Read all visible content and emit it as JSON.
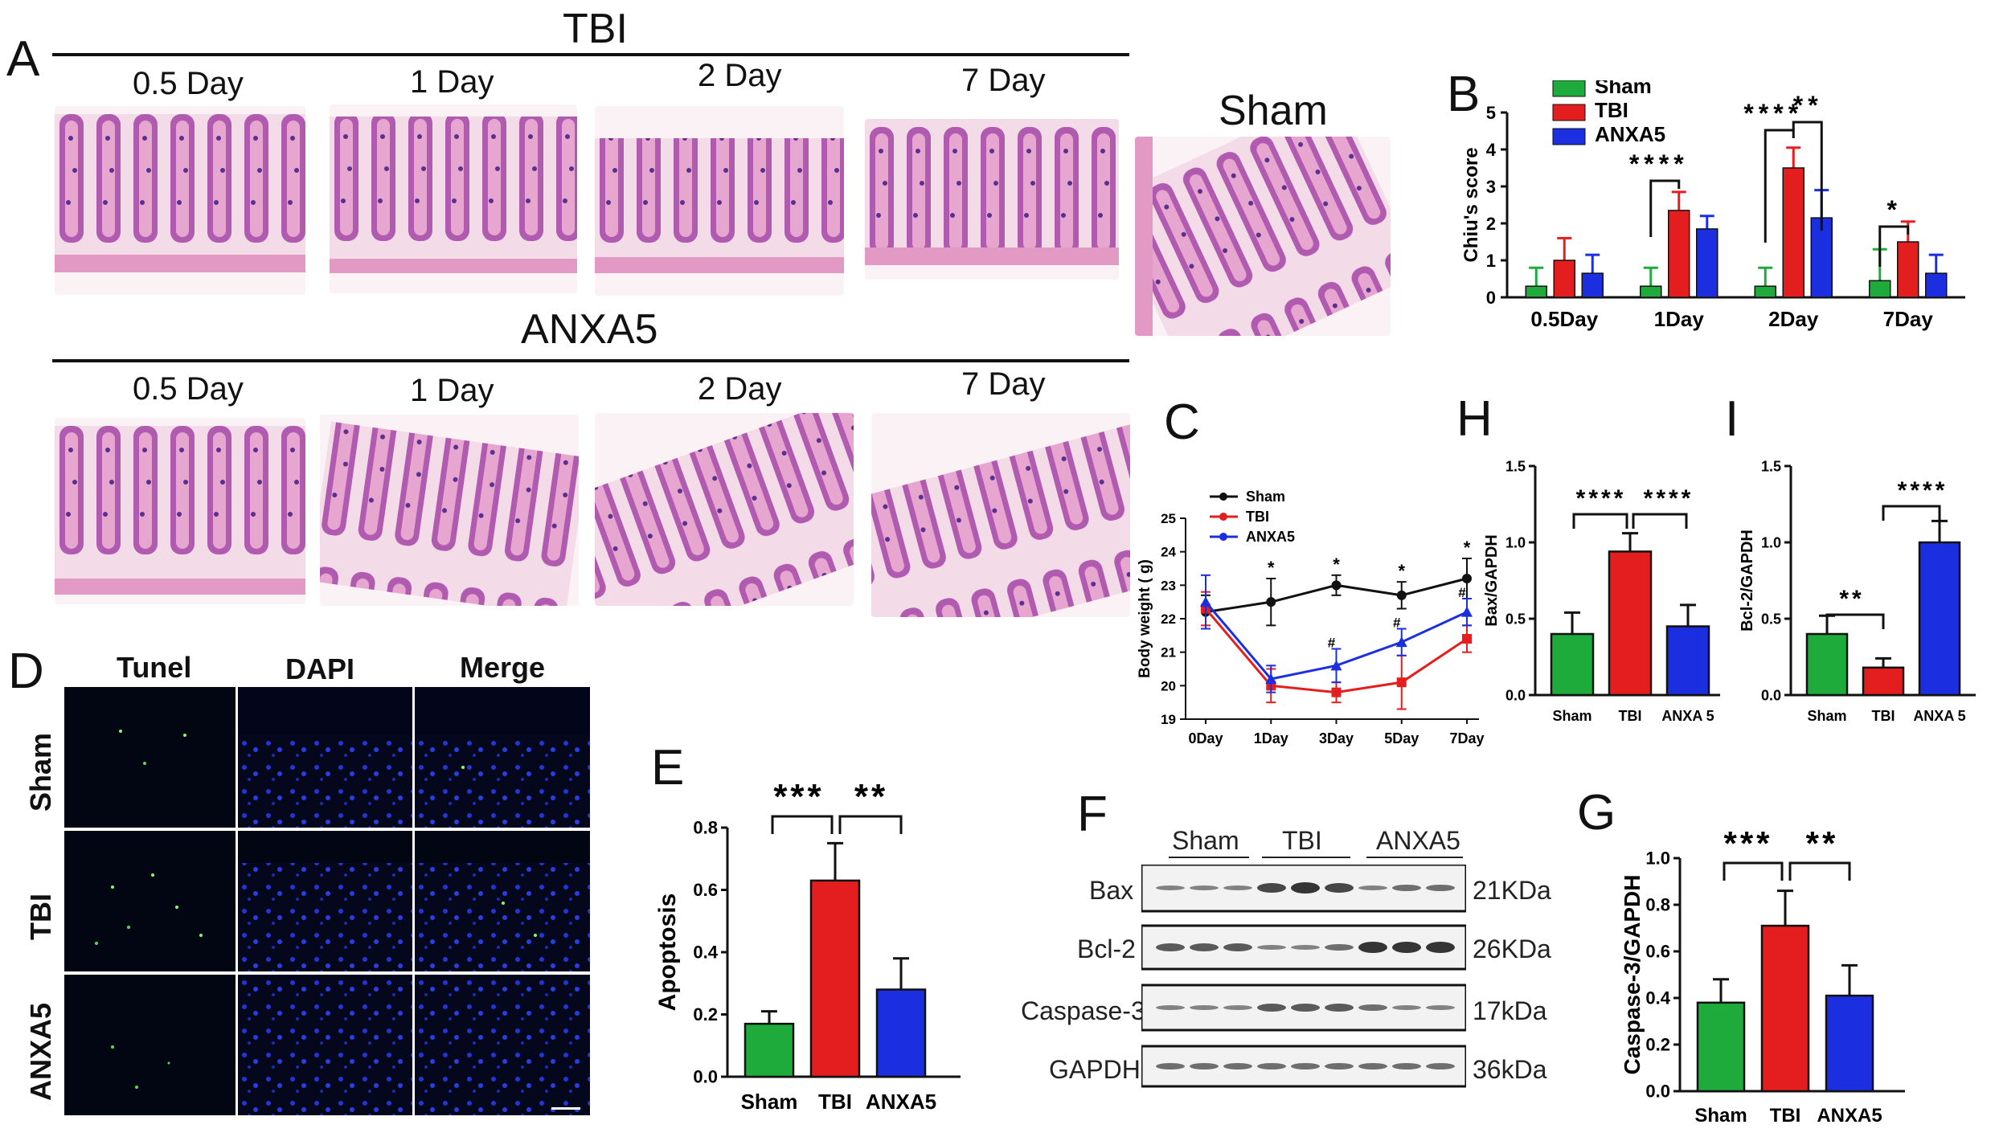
{
  "panel_labels": {
    "A": "A",
    "B": "B",
    "C": "C",
    "D": "D",
    "E": "E",
    "F": "F",
    "G": "G",
    "H": "H",
    "I": "I"
  },
  "histology": {
    "tbi_title": "TBI",
    "anxa5_title": "ANXA5",
    "sham_title": "Sham",
    "days": [
      "0.5 Day",
      "1 Day",
      "2 Day",
      "7 Day"
    ]
  },
  "tunel": {
    "columns": [
      "Tunel",
      "DAPI",
      "Merge"
    ],
    "rows": [
      "Sham",
      "TBI",
      "ANXA5"
    ]
  },
  "western": {
    "groups": [
      "Sham",
      "TBI",
      "ANXA5"
    ],
    "proteins": [
      "Bax",
      "Bcl-2",
      "Caspase-3",
      "GAPDH"
    ],
    "kda": [
      "21KDa",
      "26KDa",
      "17kDa",
      "36kDa"
    ]
  },
  "colors": {
    "sham": "#1faa3c",
    "tbi": "#e41e1e",
    "anxa5": "#1b2fe0",
    "black": "#111111"
  },
  "chart_data": [
    {
      "id": "B",
      "type": "bar",
      "title": "",
      "xlabel": "",
      "ylabel": "Chiu's score",
      "categories": [
        "0.5Day",
        "1Day",
        "2Day",
        "7Day"
      ],
      "series": [
        {
          "name": "Sham",
          "values": [
            0.3,
            0.3,
            0.3,
            0.45
          ],
          "errors": [
            0.5,
            0.5,
            0.5,
            0.85
          ]
        },
        {
          "name": "TBI",
          "values": [
            1.0,
            2.35,
            3.5,
            1.5
          ],
          "errors": [
            0.6,
            0.5,
            0.55,
            0.55
          ]
        },
        {
          "name": "ANXA5",
          "values": [
            0.65,
            1.85,
            2.15,
            0.65
          ],
          "errors": [
            0.5,
            0.35,
            0.75,
            0.5
          ]
        }
      ],
      "ylim": [
        0,
        5
      ],
      "yticks": [
        0,
        1,
        2,
        3,
        4,
        5
      ],
      "legend": [
        "Sham",
        "TBI",
        "ANXA5"
      ],
      "annotations": [
        "****",
        "****",
        "**",
        "*"
      ]
    },
    {
      "id": "C",
      "type": "line",
      "title": "",
      "xlabel": "",
      "ylabel": "Body weight ( g)",
      "x": [
        "0Day",
        "1Day",
        "3Day",
        "5Day",
        "7Day"
      ],
      "series": [
        {
          "name": "Sham",
          "values": [
            22.2,
            22.5,
            23.0,
            22.7,
            23.2
          ],
          "errors": [
            0.5,
            0.7,
            0.3,
            0.4,
            0.6
          ]
        },
        {
          "name": "TBI",
          "values": [
            22.3,
            20.0,
            19.8,
            20.1,
            21.4
          ],
          "errors": [
            0.5,
            0.5,
            0.3,
            0.8,
            0.4
          ]
        },
        {
          "name": "ANXA5",
          "values": [
            22.5,
            20.2,
            20.6,
            21.3,
            22.2
          ],
          "errors": [
            0.8,
            0.4,
            0.5,
            0.4,
            0.4
          ]
        }
      ],
      "ylim": [
        19,
        25
      ],
      "yticks": [
        19,
        20,
        21,
        22,
        23,
        24,
        25
      ],
      "legend": [
        "Sham",
        "TBI",
        "ANXA5"
      ],
      "annotations": [
        "*",
        "*",
        "*",
        "*",
        "#",
        "#",
        "#"
      ]
    },
    {
      "id": "H",
      "type": "bar",
      "ylabel": "Bax/GAPDH",
      "categories": [
        "Sham",
        "TBI",
        "ANXA 5"
      ],
      "values": [
        0.4,
        0.94,
        0.45
      ],
      "errors": [
        0.14,
        0.12,
        0.14
      ],
      "ylim": [
        0,
        1.5
      ],
      "yticks": [
        "0.0",
        "0.5",
        "1.0",
        "1.5"
      ],
      "annotations": [
        "****",
        "****"
      ]
    },
    {
      "id": "I",
      "type": "bar",
      "ylabel": "Bcl-2/GAPDH",
      "categories": [
        "Sham",
        "TBI",
        "ANXA 5"
      ],
      "values": [
        0.4,
        0.18,
        1.0
      ],
      "errors": [
        0.12,
        0.06,
        0.14
      ],
      "ylim": [
        0,
        1.5
      ],
      "yticks": [
        "0.0",
        "0.5",
        "1.0",
        "1.5"
      ],
      "annotations": [
        "**",
        "****"
      ]
    },
    {
      "id": "E",
      "type": "bar",
      "ylabel": "Apoptosis",
      "categories": [
        "Sham",
        "TBI",
        "ANXA5"
      ],
      "values": [
        0.17,
        0.63,
        0.28
      ],
      "errors": [
        0.04,
        0.12,
        0.1
      ],
      "ylim": [
        0,
        0.8
      ],
      "yticks": [
        "0.0",
        "0.2",
        "0.4",
        "0.6",
        "0.8"
      ],
      "annotations": [
        "***",
        "**"
      ]
    },
    {
      "id": "G",
      "type": "bar",
      "ylabel": "Caspase-3/GAPDH",
      "categories": [
        "Sham",
        "TBI",
        "ANXA5"
      ],
      "values": [
        0.38,
        0.71,
        0.41
      ],
      "errors": [
        0.1,
        0.15,
        0.13
      ],
      "ylim": [
        0,
        1.0
      ],
      "yticks": [
        "0.0",
        "0.2",
        "0.4",
        "0.6",
        "0.8",
        "1.0"
      ],
      "annotations": [
        "***",
        "**"
      ]
    }
  ]
}
